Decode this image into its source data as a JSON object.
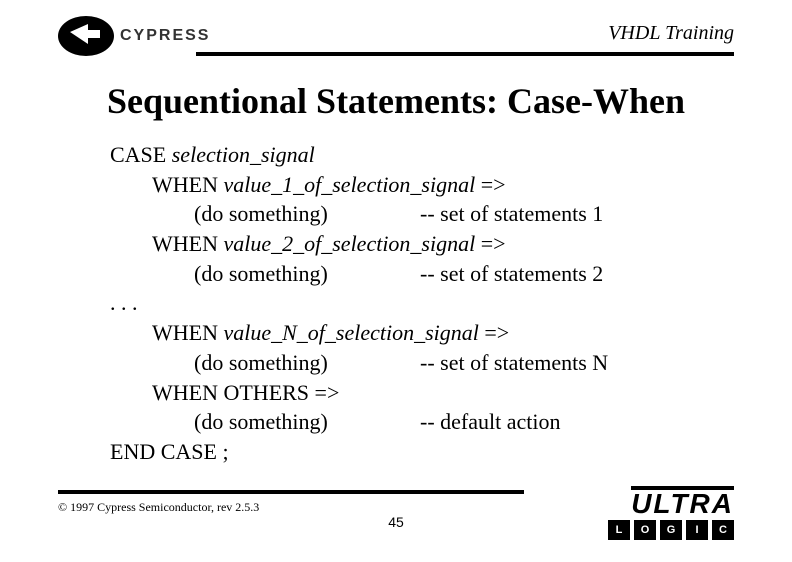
{
  "header": {
    "course": "VHDL Training",
    "brand": "CYPRESS"
  },
  "title": "Sequentional Statements: Case-When",
  "code": {
    "case_kw": "CASE ",
    "case_expr": "selection_signal",
    "when_kw": "WHEN ",
    "arrow": " =>",
    "do": "(do something)",
    "ellipsis": ". . .",
    "others": "WHEN OTHERS  =>",
    "end": "END CASE ;",
    "whens": [
      {
        "val": "value_1_of_selection_signal",
        "comment": "-- set of statements 1"
      },
      {
        "val": "value_2_of_selection_signal",
        "comment": "-- set of statements 2"
      }
    ],
    "when_n": {
      "val": "value_N_of_selection_signal",
      "comment": "-- set of statements N"
    },
    "default_comment": "-- default action"
  },
  "footer": {
    "copyright": "© 1997 Cypress Semiconductor, rev 2.5.3",
    "page": "45",
    "ultra": "ULTRA",
    "logic": [
      "L",
      "O",
      "G",
      "I",
      "C"
    ]
  }
}
